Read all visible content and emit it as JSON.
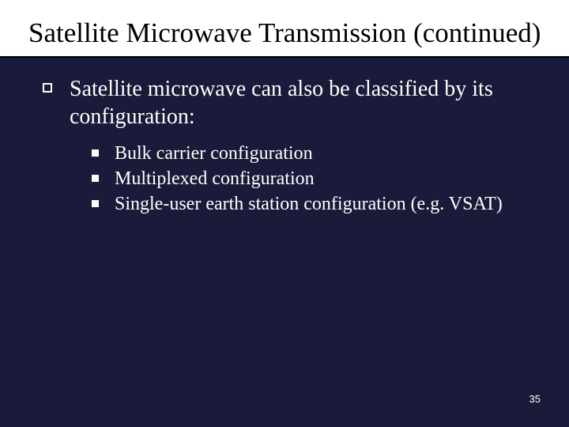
{
  "title": "Satellite Microwave Transmission (continued)",
  "main_point": "Satellite microwave can also be classified by its configuration:",
  "sub_points": [
    "Bulk carrier configuration",
    "Multiplexed configuration",
    "Single-user earth station configuration (e.g. VSAT)"
  ],
  "page_number": "35",
  "colors": {
    "background": "#1a1a3a",
    "title_bg": "#ffffff",
    "title_text": "#000000",
    "body_text": "#ffffff",
    "corner": "#4a4a6a"
  },
  "fonts": {
    "title_size_pt": 35,
    "level1_size_pt": 28,
    "level2_size_pt": 24,
    "pagenum_size_pt": 13
  }
}
